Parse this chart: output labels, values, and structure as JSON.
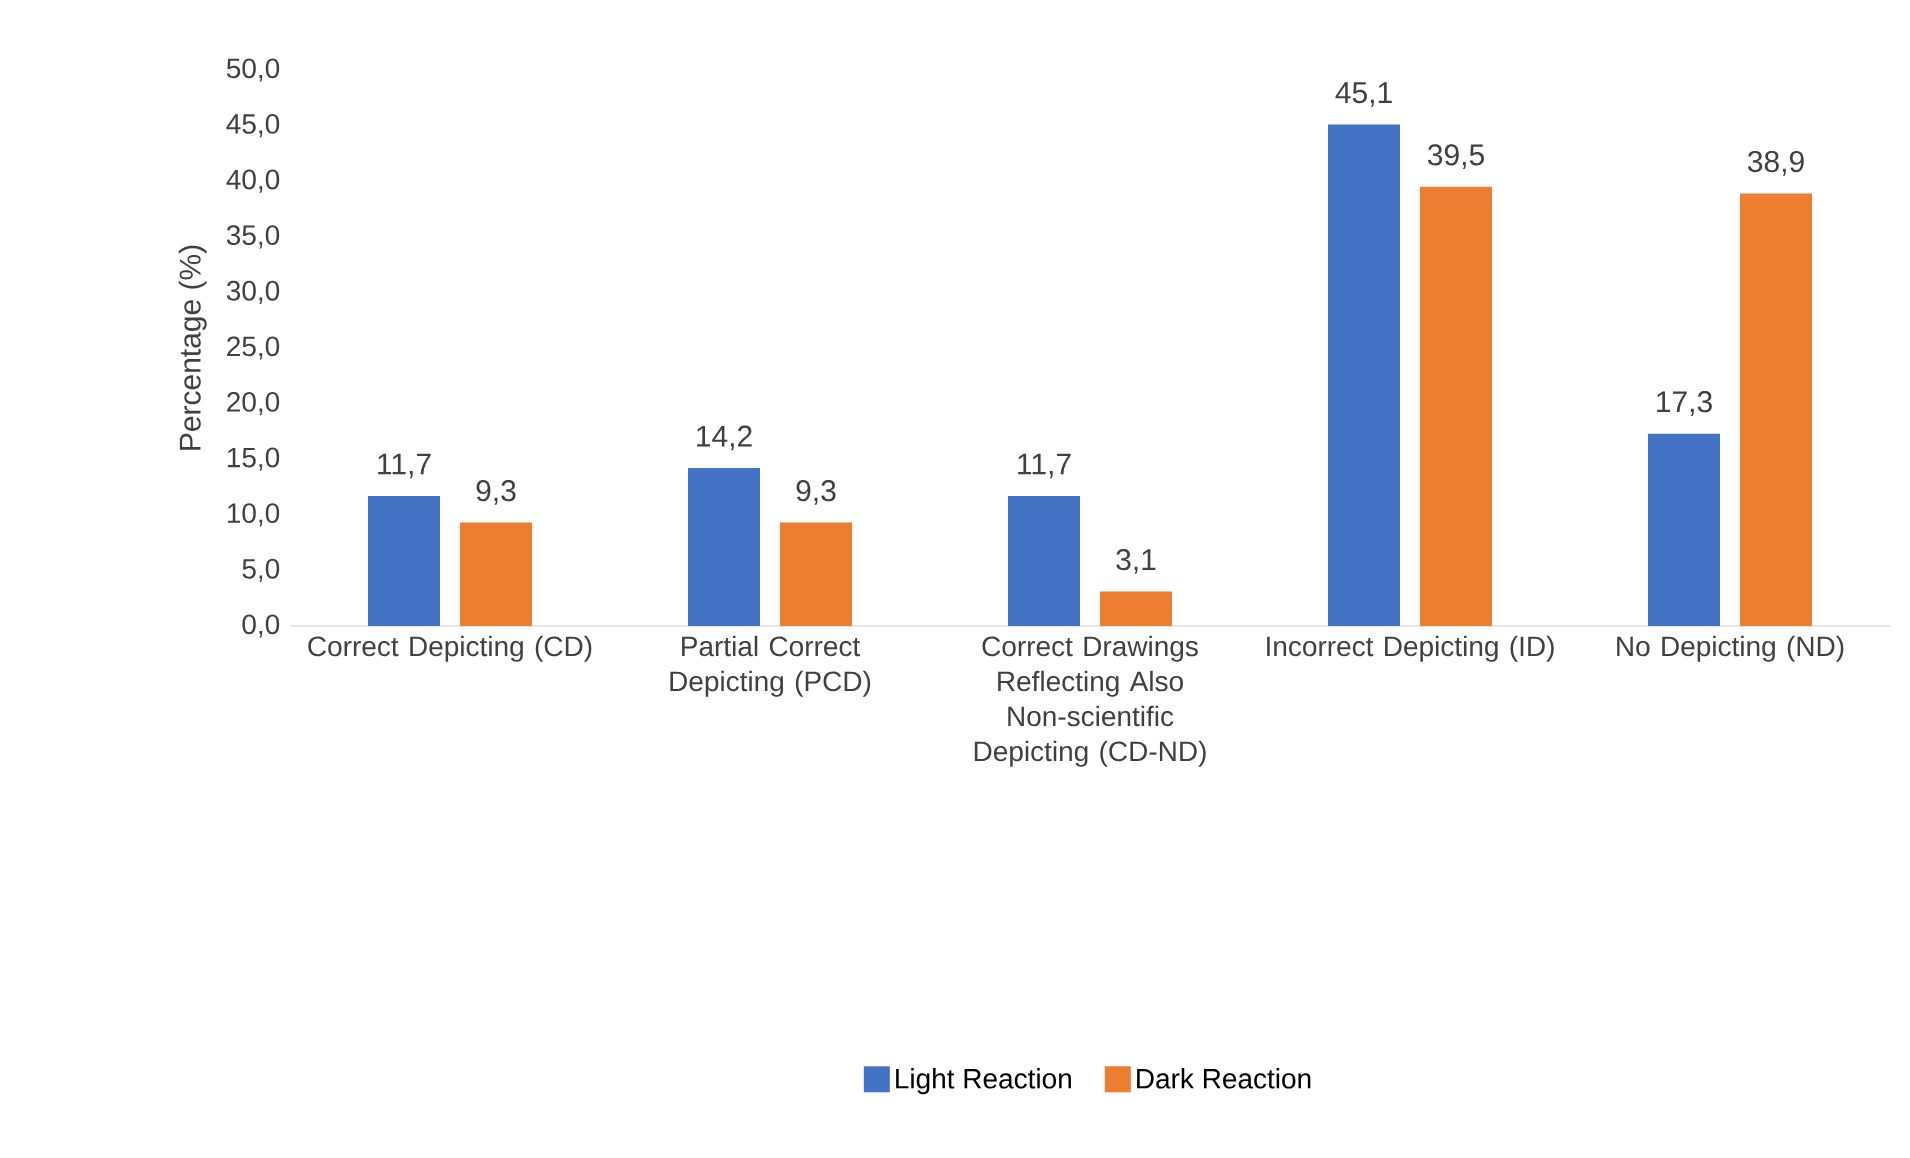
{
  "chart_data": {
    "type": "bar",
    "ylabel": "Percentage (%)",
    "categories": [
      "Correct Depicting (CD)",
      "Partial Correct Depicting (PCD)",
      "Correct Drawings Reflecting Also Non-scientific Depicting (CD-ND)",
      "Incorrect Depicting (ID)",
      "No Depicting (ND)"
    ],
    "series": [
      {
        "name": "Light Reaction",
        "color": "#4472c4",
        "values": [
          11.7,
          14.2,
          11.7,
          45.1,
          17.3
        ],
        "value_labels": [
          "11,7",
          "14,2",
          "11,7",
          "45,1",
          "17,3"
        ]
      },
      {
        "name": "Dark Reaction",
        "color": "#ed7d31",
        "values": [
          9.3,
          9.3,
          3.1,
          39.5,
          38.9
        ],
        "value_labels": [
          "9,3",
          "9,3",
          "3,1",
          "39,5",
          "38,9"
        ]
      }
    ],
    "ylim": [
      0,
      50
    ],
    "yticks": [
      {
        "value": 0,
        "label": "0,0"
      },
      {
        "value": 5,
        "label": "5,0"
      },
      {
        "value": 10,
        "label": "10,0"
      },
      {
        "value": 15,
        "label": "15,0"
      },
      {
        "value": 20,
        "label": "20,0"
      },
      {
        "value": 25,
        "label": "25,0"
      },
      {
        "value": 30,
        "label": "30,0"
      },
      {
        "value": 35,
        "label": "35,0"
      },
      {
        "value": 40,
        "label": "40,0"
      },
      {
        "value": 45,
        "label": "45,0"
      },
      {
        "value": 50,
        "label": "50,0"
      }
    ],
    "legend": "bottom"
  }
}
